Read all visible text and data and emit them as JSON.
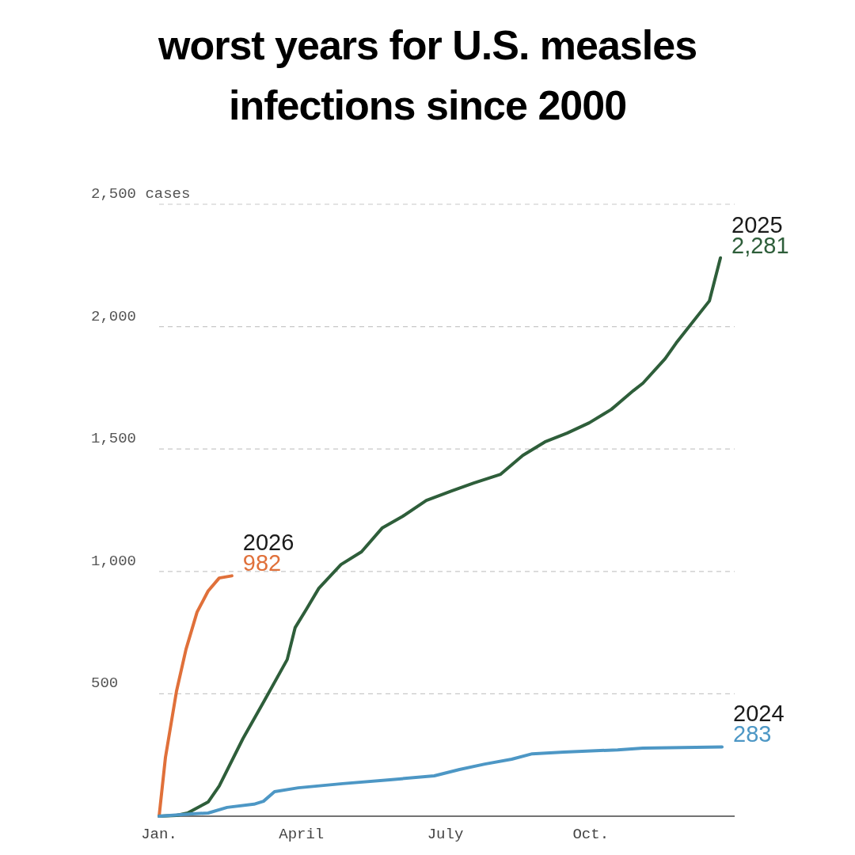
{
  "chart_data": {
    "type": "line",
    "title": "worst years for U.S. measles infections since 2000",
    "xlim": [
      "--01-01",
      "--12-31"
    ],
    "xticks": [
      {
        "value": "--01-01",
        "label": "Jan."
      },
      {
        "value": "--04-01",
        "label": "April"
      },
      {
        "value": "--07-01",
        "label": "July"
      },
      {
        "value": "--10-01",
        "label": "Oct."
      }
    ],
    "ylim": [
      0,
      2500
    ],
    "yticks": [
      500,
      {
        "value": 1000,
        "label": "1,000"
      },
      {
        "value": 1500,
        "label": "1,500"
      },
      {
        "value": 2000,
        "label": "2,000"
      },
      {
        "value": 2500,
        "label": "2,500 cases"
      }
    ],
    "grid": "y",
    "line_style": "solid",
    "marker": "none",
    "series": [
      {
        "name": "2026",
        "color": "#e0703a",
        "x": [
          "--01-01",
          "--01-05",
          "--01-12",
          "--01-18",
          "--01-25",
          "--02-01",
          "--02-08",
          "--02-16"
        ],
        "values": [
          0,
          240,
          511,
          682,
          834,
          920,
          973,
          982
        ],
        "value_labels": [
          null,
          null,
          null,
          null,
          null,
          null,
          null,
          "982"
        ]
      },
      {
        "name": "2025",
        "color": "#2e5e3a",
        "x": [
          "--01-01",
          "--01-12",
          "--01-19",
          "--02-01",
          "--02-08",
          "--02-23",
          "--03-08",
          "--03-23",
          "--03-28",
          "--04-04",
          "--04-12",
          "--04-26",
          "--05-09",
          "--05-22",
          "--06-04",
          "--06-19",
          "--07-05",
          "--07-19",
          "--08-05",
          "--08-19",
          "--09-02",
          "--09-16",
          "--09-30",
          "--10-14",
          "--10-28",
          "--11-03",
          "--11-17",
          "--11-24",
          "--12-15",
          "--12-22"
        ],
        "values": [
          0,
          3,
          13,
          58,
          123,
          317,
          466,
          640,
          770,
          844,
          931,
          1028,
          1080,
          1177,
          1225,
          1290,
          1329,
          1361,
          1397,
          1474,
          1529,
          1565,
          1607,
          1662,
          1739,
          1769,
          1869,
          1933,
          2105,
          2281
        ],
        "value_labels": [
          null,
          null,
          null,
          null,
          null,
          null,
          null,
          null,
          null,
          null,
          null,
          null,
          null,
          null,
          null,
          null,
          null,
          null,
          null,
          null,
          null,
          null,
          null,
          null,
          null,
          null,
          null,
          null,
          null,
          "2,281"
        ]
      },
      {
        "name": "2024",
        "color": "#4d97c5",
        "x": [
          "--01-01",
          "--01-22",
          "--02-01",
          "--02-13",
          "--03-02",
          "--03-08",
          "--03-15",
          "--03-30",
          "--04-27",
          "--05-27",
          "--06-24",
          "--07-10",
          "--07-26",
          "--08-12",
          "--08-25",
          "--09-14",
          "--10-18",
          "--11-03",
          "--12-23"
        ],
        "values": [
          0,
          10,
          13,
          36,
          49,
          61,
          100,
          116,
          133,
          149,
          165,
          191,
          213,
          233,
          255,
          262,
          271,
          278,
          283
        ],
        "value_labels": [
          null,
          null,
          null,
          null,
          null,
          null,
          null,
          null,
          null,
          null,
          null,
          null,
          null,
          null,
          null,
          null,
          null,
          null,
          "283"
        ]
      }
    ]
  }
}
